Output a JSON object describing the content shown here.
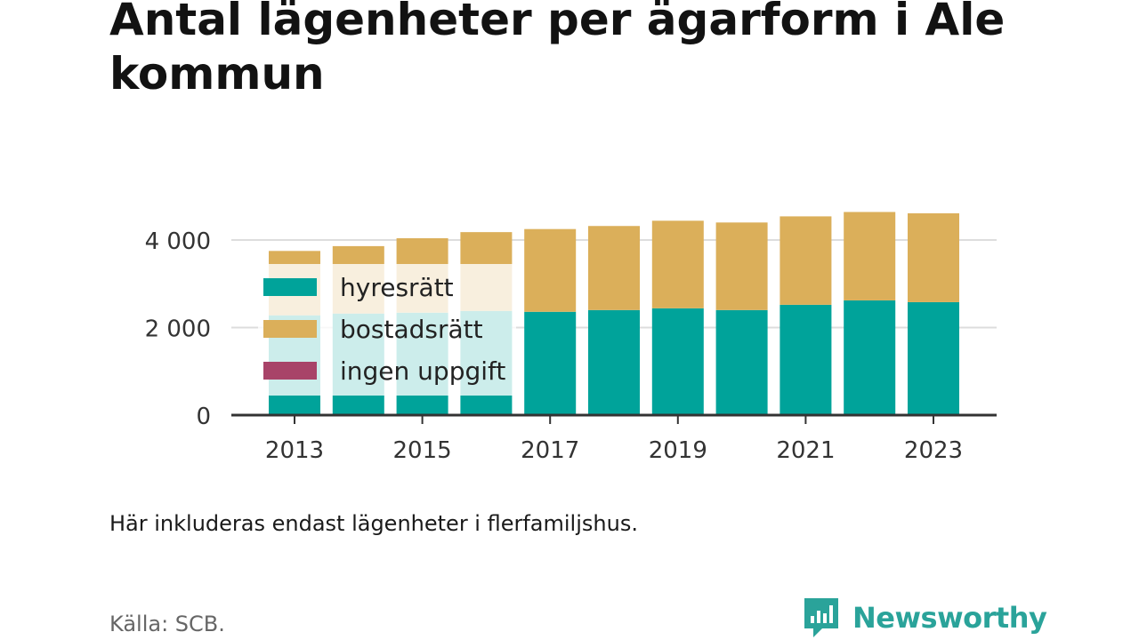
{
  "title": "Antal lägenheter per ägarform i Ale kommun",
  "note": "Här inkluderas endast lägenheter i flerfamiljshus.",
  "source": "Källa: SCB.",
  "brand": {
    "name": "Newsworthy",
    "icon": "newsworthy-logo-icon",
    "color": "#2aa39a"
  },
  "chart_data": {
    "type": "bar",
    "stacked": true,
    "categories": [
      2013,
      2014,
      2015,
      2016,
      2017,
      2018,
      2019,
      2020,
      2021,
      2022,
      2023
    ],
    "x_tick_labels": [
      "2013",
      "2015",
      "2017",
      "2019",
      "2021",
      "2023"
    ],
    "y_tick_labels": [
      "0",
      "2 000",
      "4 000"
    ],
    "y_ticks": [
      0,
      2000,
      4000
    ],
    "ylim": [
      0,
      4500
    ],
    "grid": true,
    "legend_position": "top-left",
    "series": [
      {
        "name": "hyresrätt",
        "color": "#00a39a",
        "values": [
          2280,
          2320,
          2340,
          2380,
          2360,
          2400,
          2440,
          2400,
          2520,
          2620,
          2580
        ]
      },
      {
        "name": "bostadsrätt",
        "color": "#dbaf5a",
        "values": [
          1470,
          1540,
          1700,
          1800,
          1890,
          1920,
          2000,
          2000,
          2020,
          2020,
          2030
        ]
      },
      {
        "name": "ingen uppgift",
        "color": "#a84368",
        "values": [
          0,
          0,
          0,
          0,
          0,
          0,
          0,
          0,
          0,
          0,
          0
        ]
      }
    ]
  }
}
